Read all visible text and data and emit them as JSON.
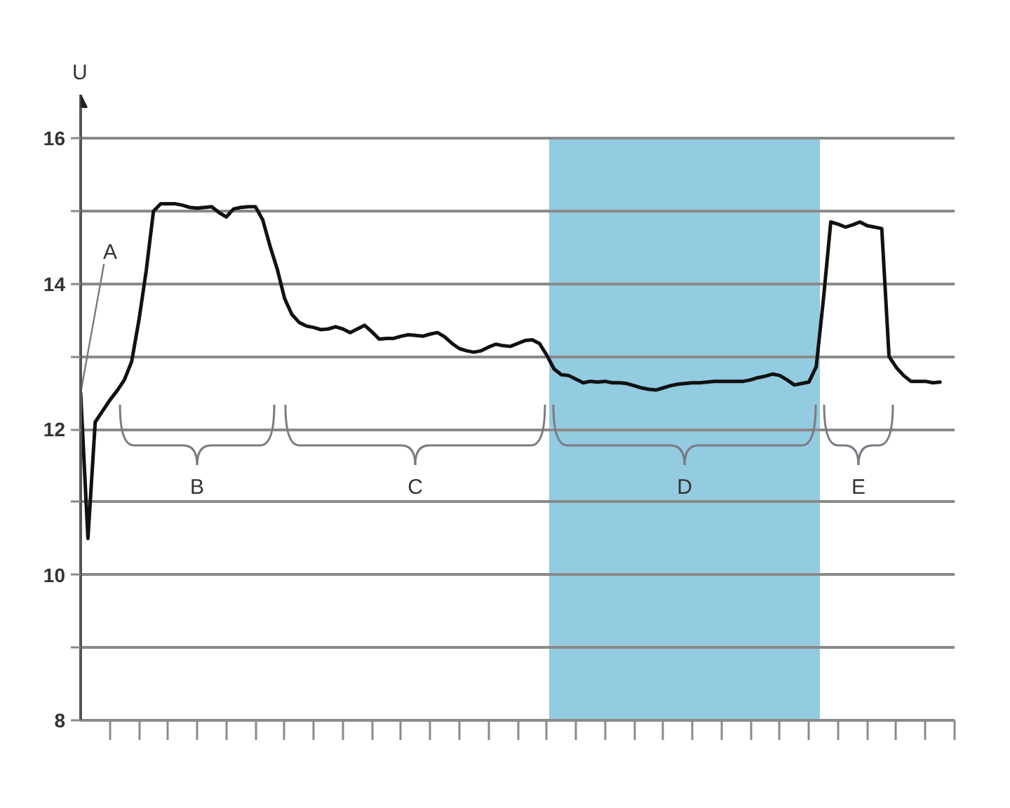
{
  "chart_data": {
    "type": "line",
    "ylabel": "U",
    "categories": [
      null,
      null,
      null,
      null,
      null,
      null,
      null,
      null,
      null,
      null,
      null,
      null,
      null,
      null,
      null,
      null,
      null,
      null,
      null,
      null,
      null,
      null,
      null,
      null,
      null,
      null,
      null,
      null,
      null,
      null,
      null,
      null,
      null,
      null,
      null,
      null,
      null,
      null,
      null,
      null,
      null,
      null,
      null,
      null,
      null,
      null,
      null,
      null,
      null,
      null,
      null,
      null,
      null,
      null,
      null,
      null,
      null,
      null,
      null,
      null,
      null,
      null,
      null,
      null,
      null,
      null,
      null,
      null,
      null,
      null,
      null,
      null,
      null,
      null,
      null,
      null,
      null,
      null,
      null,
      null,
      null,
      null,
      null,
      null,
      null,
      null,
      null,
      null,
      null,
      null,
      null,
      null,
      null,
      null,
      null,
      null,
      null,
      null,
      null,
      null,
      null,
      null,
      null,
      null,
      null,
      null,
      null,
      null,
      null,
      null,
      null,
      null,
      null,
      null,
      null,
      null,
      null,
      null,
      null,
      null,
      null
    ],
    "values": [
      12.5,
      10.5,
      12.1,
      12.25,
      12.4,
      12.53,
      12.68,
      12.93,
      13.5,
      14.18,
      15.0,
      15.1,
      15.1,
      15.1,
      15.08,
      15.05,
      15.04,
      15.05,
      15.06,
      14.98,
      14.92,
      15.03,
      15.05,
      15.06,
      15.06,
      14.88,
      14.52,
      14.2,
      13.8,
      13.58,
      13.47,
      13.42,
      13.4,
      13.37,
      13.38,
      13.41,
      13.38,
      13.33,
      13.38,
      13.43,
      13.34,
      13.24,
      13.25,
      13.25,
      13.28,
      13.3,
      13.29,
      13.28,
      13.31,
      13.33,
      13.27,
      13.18,
      13.11,
      13.08,
      13.06,
      13.08,
      13.13,
      13.17,
      13.15,
      13.14,
      13.18,
      13.22,
      13.23,
      13.18,
      13.02,
      12.83,
      12.75,
      12.74,
      12.69,
      12.64,
      12.66,
      12.65,
      12.66,
      12.64,
      12.64,
      12.63,
      12.6,
      12.57,
      12.55,
      12.54,
      12.57,
      12.6,
      12.62,
      12.63,
      12.64,
      12.64,
      12.65,
      12.66,
      12.66,
      12.66,
      12.66,
      12.66,
      12.68,
      12.71,
      12.73,
      12.76,
      12.74,
      12.68,
      12.61,
      12.63,
      12.65,
      12.86,
      13.8,
      14.85,
      14.82,
      14.78,
      14.81,
      14.85,
      14.8,
      14.78,
      14.76,
      13.0,
      12.85,
      12.74,
      12.66,
      12.66,
      12.66,
      12.64,
      12.65,
      null,
      null
    ],
    "color": "#111111",
    "ylim": [
      8,
      16.6
    ],
    "yticks": [
      8,
      {
        "value": 9,
        "label": null
      },
      10,
      {
        "value": 11,
        "label": null
      },
      12,
      {
        "value": 13,
        "label": null
      },
      14,
      {
        "value": 15,
        "label": null
      },
      16
    ],
    "tick_labels": "y",
    "grid": "y",
    "annotations": [
      "A",
      "B",
      "C",
      "D",
      "E"
    ]
  }
}
